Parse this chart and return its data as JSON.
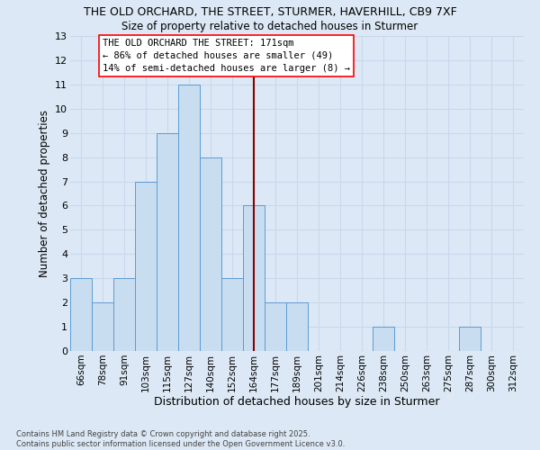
{
  "title_line1": "THE OLD ORCHARD, THE STREET, STURMER, HAVERHILL, CB9 7XF",
  "title_line2": "Size of property relative to detached houses in Sturmer",
  "xlabel": "Distribution of detached houses by size in Sturmer",
  "ylabel": "Number of detached properties",
  "bins": [
    "66sqm",
    "78sqm",
    "91sqm",
    "103sqm",
    "115sqm",
    "127sqm",
    "140sqm",
    "152sqm",
    "164sqm",
    "177sqm",
    "189sqm",
    "201sqm",
    "214sqm",
    "226sqm",
    "238sqm",
    "250sqm",
    "263sqm",
    "275sqm",
    "287sqm",
    "300sqm",
    "312sqm"
  ],
  "values": [
    3,
    2,
    3,
    7,
    9,
    11,
    8,
    3,
    6,
    2,
    2,
    0,
    0,
    0,
    1,
    0,
    0,
    0,
    1,
    0,
    0
  ],
  "bar_color": "#c9ddf0",
  "bar_edge_color": "#5b9bd5",
  "vline_pos": 8,
  "vline_color": "#8b0000",
  "annotation_text": "THE OLD ORCHARD THE STREET: 171sqm\n← 86% of detached houses are smaller (49)\n14% of semi-detached houses are larger (8) →",
  "footer_line1": "Contains HM Land Registry data © Crown copyright and database right 2025.",
  "footer_line2": "Contains public sector information licensed under the Open Government Licence v3.0.",
  "bg_color": "#dce8f5",
  "grid_color": "#c8d8ec",
  "ylim": [
    0,
    13
  ],
  "yticks": [
    0,
    1,
    2,
    3,
    4,
    5,
    6,
    7,
    8,
    9,
    10,
    11,
    12,
    13
  ]
}
